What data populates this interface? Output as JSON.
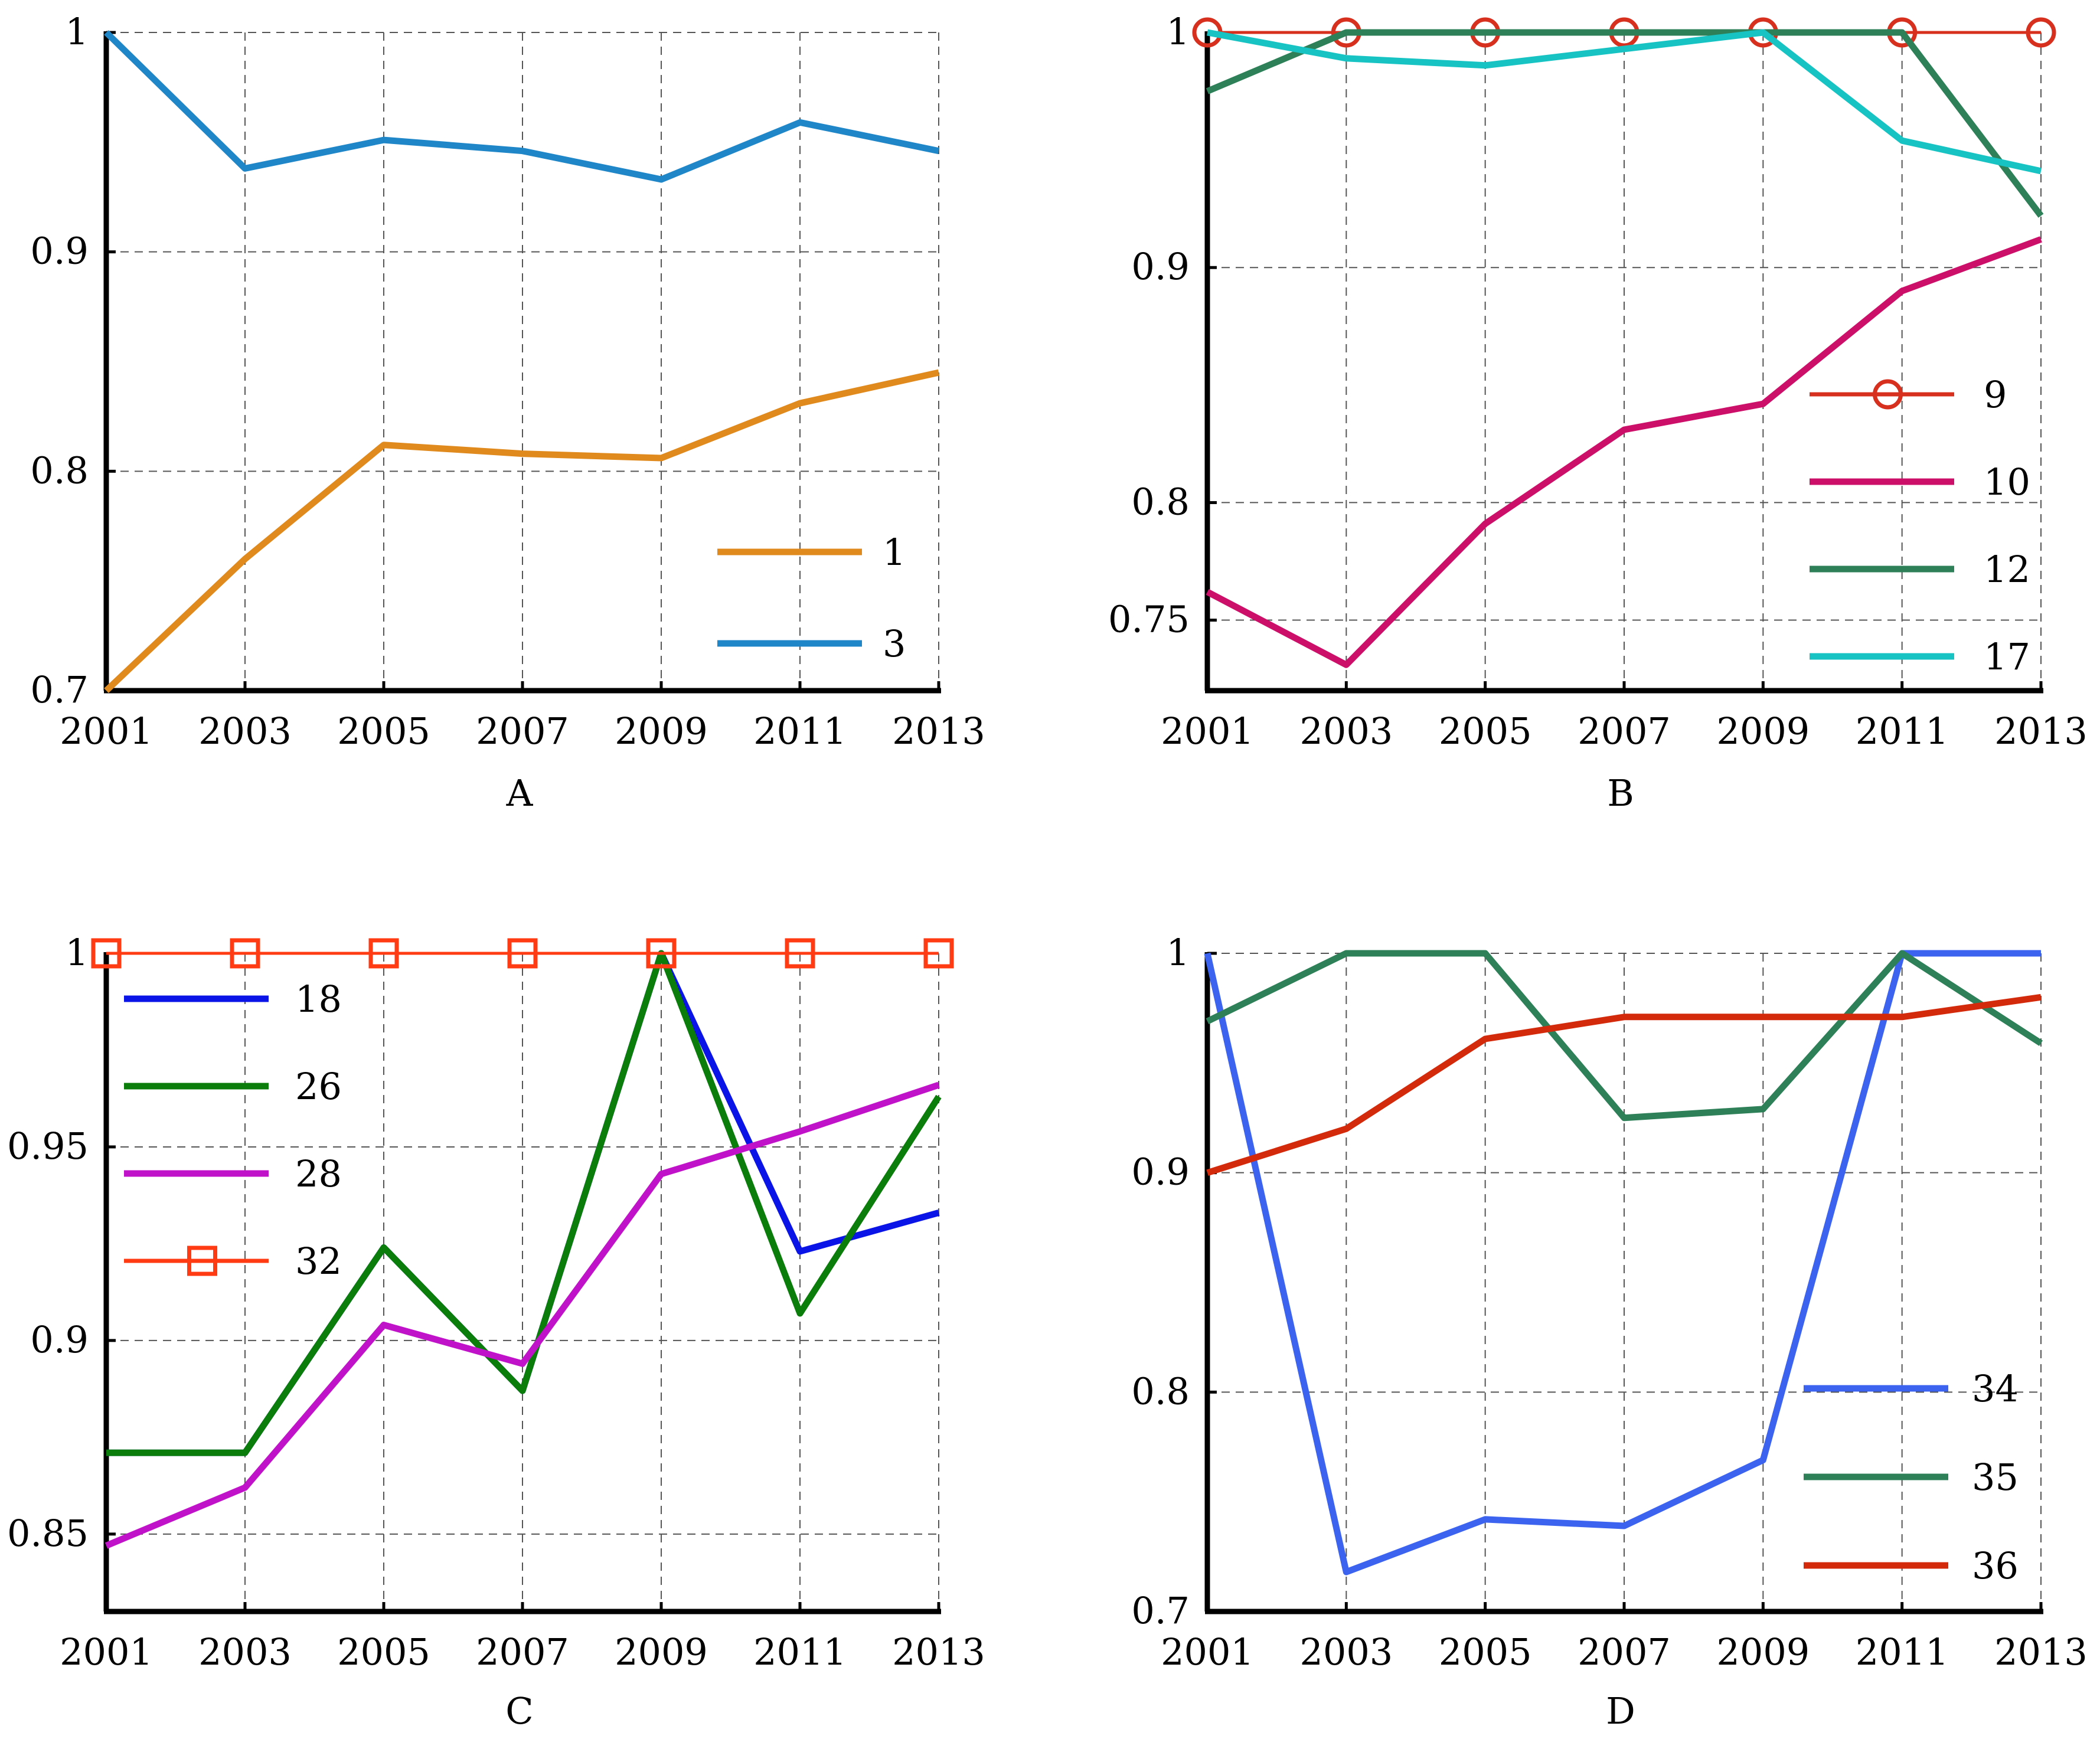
{
  "chart_data": [
    {
      "id": "A",
      "type": "line",
      "title": "",
      "xlabel": "A",
      "ylabel": "",
      "x": [
        2001,
        2003,
        2005,
        2007,
        2009,
        2011,
        2013
      ],
      "x_tick_labels": [
        "2001",
        "2003",
        "2005",
        "2007",
        "2009",
        "2011",
        "2013"
      ],
      "ylim": [
        0.7,
        1.0
      ],
      "y_ticks": [
        0.7,
        0.8,
        0.9,
        1.0
      ],
      "y_tick_labels": [
        "0.7",
        "0.8",
        "0.9",
        "1"
      ],
      "grid": true,
      "legend_position": "bottom-right",
      "series": [
        {
          "name": "1",
          "color": "#e08a1e",
          "marker": "none",
          "values": [
            0.7,
            0.76,
            0.812,
            0.808,
            0.806,
            0.831,
            0.845
          ]
        },
        {
          "name": "3",
          "color": "#1f86c8",
          "marker": "none",
          "values": [
            1.0,
            0.938,
            0.951,
            0.946,
            0.933,
            0.959,
            0.946
          ]
        }
      ]
    },
    {
      "id": "B",
      "type": "line",
      "title": "",
      "xlabel": "B",
      "ylabel": "",
      "x": [
        2001,
        2003,
        2005,
        2007,
        2009,
        2011,
        2013
      ],
      "x_tick_labels": [
        "2001",
        "2003",
        "2005",
        "2007",
        "2009",
        "2011",
        "2013"
      ],
      "ylim": [
        0.72,
        1.0
      ],
      "y_ticks": [
        0.75,
        0.8,
        0.9,
        1.0
      ],
      "y_tick_labels": [
        "0.75",
        "0.8",
        "0.9",
        "1"
      ],
      "grid": true,
      "legend_position": "bottom-right",
      "series": [
        {
          "name": "9",
          "color": "#d7301f",
          "marker": "circle",
          "values": [
            1.0,
            1.0,
            1.0,
            1.0,
            1.0,
            1.0,
            1.0
          ]
        },
        {
          "name": "10",
          "color": "#cc0f68",
          "marker": "none",
          "values": [
            0.762,
            0.731,
            0.791,
            0.831,
            0.842,
            0.89,
            0.912
          ]
        },
        {
          "name": "12",
          "color": "#2e8059",
          "marker": "none",
          "values": [
            0.975,
            1.0,
            1.0,
            1.0,
            1.0,
            1.0,
            0.922
          ]
        },
        {
          "name": "17",
          "color": "#17c3c3",
          "marker": "none",
          "values": [
            1.0,
            0.989,
            0.986,
            0.993,
            1.0,
            0.954,
            0.941
          ]
        }
      ]
    },
    {
      "id": "C",
      "type": "line",
      "title": "",
      "xlabel": "C",
      "ylabel": "",
      "x": [
        2001,
        2003,
        2005,
        2007,
        2009,
        2011,
        2013
      ],
      "x_tick_labels": [
        "2001",
        "2003",
        "2005",
        "2007",
        "2009",
        "2011",
        "2013"
      ],
      "ylim": [
        0.83,
        1.0
      ],
      "y_ticks": [
        0.85,
        0.9,
        0.95,
        1.0
      ],
      "y_tick_labels": [
        "0.85",
        "0.9",
        "0.95",
        "1"
      ],
      "grid": true,
      "legend_position": "top-left",
      "series": [
        {
          "name": "18",
          "color": "#0a14e6",
          "marker": "none",
          "values": [
            0.871,
            0.871,
            0.924,
            0.887,
            1.0,
            0.923,
            0.933
          ]
        },
        {
          "name": "26",
          "color": "#0a7d0a",
          "marker": "none",
          "values": [
            0.871,
            0.871,
            0.924,
            0.887,
            1.0,
            0.907,
            0.963
          ]
        },
        {
          "name": "28",
          "color": "#c012c8",
          "marker": "none",
          "values": [
            0.847,
            0.862,
            0.904,
            0.894,
            0.943,
            0.954,
            0.966
          ]
        },
        {
          "name": "32",
          "color": "#ff3b14",
          "marker": "square",
          "values": [
            1.0,
            1.0,
            1.0,
            1.0,
            1.0,
            1.0,
            1.0
          ]
        }
      ]
    },
    {
      "id": "D",
      "type": "line",
      "title": "",
      "xlabel": "D",
      "ylabel": "",
      "x": [
        2001,
        2003,
        2005,
        2007,
        2009,
        2011,
        2013
      ],
      "x_tick_labels": [
        "2001",
        "2003",
        "2005",
        "2007",
        "2009",
        "2011",
        "2013"
      ],
      "ylim": [
        0.7,
        1.0
      ],
      "y_ticks": [
        0.7,
        0.8,
        0.9,
        1.0
      ],
      "y_tick_labels": [
        "0.7",
        "0.8",
        "0.9",
        "1"
      ],
      "grid": true,
      "legend_position": "bottom-right",
      "series": [
        {
          "name": "34",
          "color": "#3b63f0",
          "marker": "none",
          "values": [
            1.0,
            0.718,
            0.742,
            0.739,
            0.769,
            1.0,
            1.0
          ]
        },
        {
          "name": "35",
          "color": "#2e8059",
          "marker": "none",
          "values": [
            0.969,
            1.0,
            1.0,
            0.925,
            0.929,
            1.0,
            0.959
          ]
        },
        {
          "name": "36",
          "color": "#d42a0c",
          "marker": "none",
          "values": [
            0.9,
            0.92,
            0.961,
            0.971,
            0.971,
            0.971,
            0.98
          ]
        }
      ]
    }
  ]
}
